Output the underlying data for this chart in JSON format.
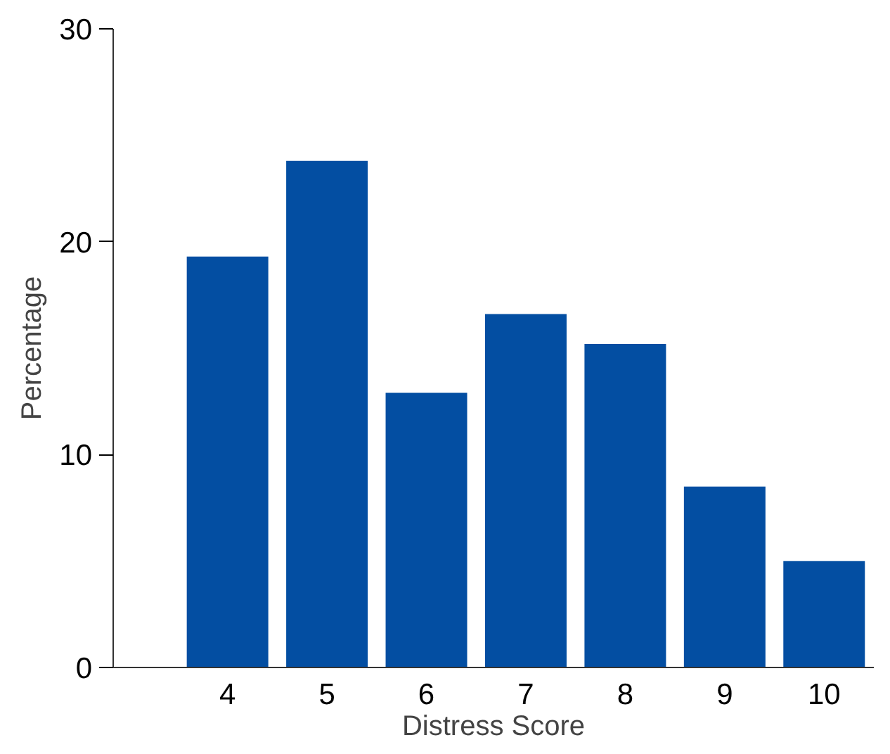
{
  "chart_data": {
    "type": "bar",
    "xlabel": "Distress Score",
    "ylabel": "Percentage",
    "x": [
      4,
      5,
      6,
      7,
      8,
      9,
      10
    ],
    "values": [
      19.3,
      23.8,
      12.9,
      16.6,
      15.2,
      8.5,
      5.0
    ],
    "color": "#034ea2",
    "xlim": [
      2.85,
      10.5
    ],
    "xticks": [
      4,
      5,
      6,
      7,
      8,
      9,
      10
    ],
    "ylim": [
      0,
      30
    ],
    "yticks": [
      0,
      10,
      20,
      30
    ],
    "grid": false
  }
}
